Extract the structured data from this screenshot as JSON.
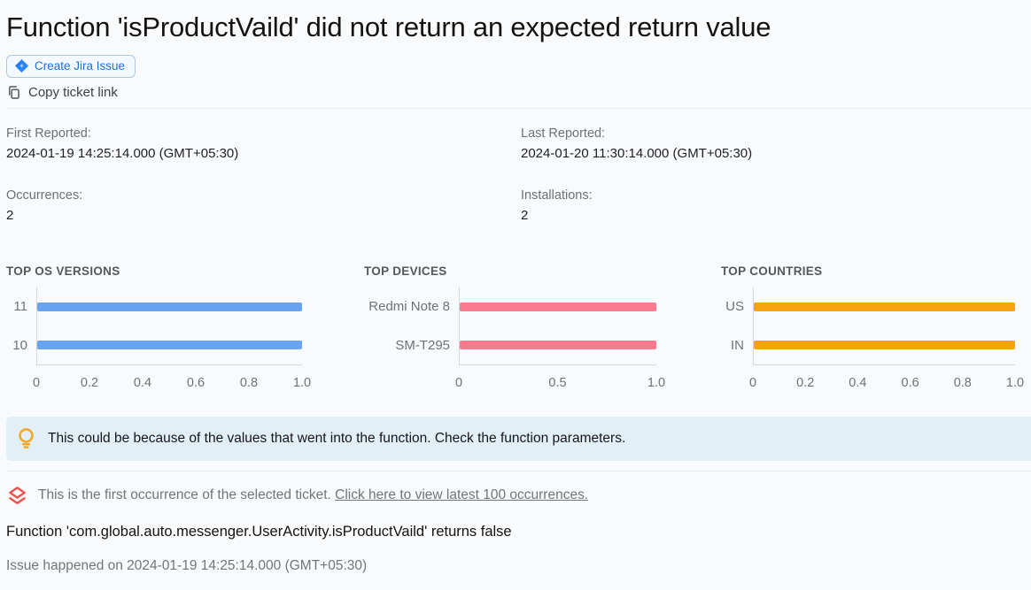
{
  "header": {
    "title": "Function 'isProductVaild' did not return an expected return value",
    "create_jira_label": "Create Jira Issue",
    "copy_ticket_label": "Copy ticket link"
  },
  "meta": {
    "first_reported_label": "First Reported:",
    "first_reported_value": "2024-01-19 14:25:14.000 (GMT+05:30)",
    "last_reported_label": "Last Reported:",
    "last_reported_value": "2024-01-20 11:30:14.000 (GMT+05:30)",
    "occurrences_label": "Occurrences:",
    "occurrences_value": "2",
    "installations_label": "Installations:",
    "installations_value": "2"
  },
  "chart_data": [
    {
      "type": "bar",
      "orientation": "horizontal",
      "title": "TOP OS VERSIONS",
      "categories": [
        "11",
        "10"
      ],
      "values": [
        1.0,
        1.0
      ],
      "xlim": [
        0,
        1.0
      ],
      "xticks": [
        0,
        0.2,
        0.4,
        0.6,
        0.8,
        1.0
      ],
      "xtick_labels": [
        "0",
        "0.2",
        "0.4",
        "0.6",
        "0.8",
        "1.0"
      ],
      "bar_color": "#68a4f1",
      "grid": false,
      "legend": false
    },
    {
      "type": "bar",
      "orientation": "horizontal",
      "title": "TOP DEVICES",
      "categories": [
        "Redmi Note 8",
        "SM-T295"
      ],
      "values": [
        1.0,
        1.0
      ],
      "xlim": [
        0,
        1.0
      ],
      "xticks": [
        0,
        0.5,
        1.0
      ],
      "xtick_labels": [
        "0",
        "0.5",
        "1.0"
      ],
      "bar_color": "#fa7a90",
      "grid": false,
      "legend": false
    },
    {
      "type": "bar",
      "orientation": "horizontal",
      "title": "TOP COUNTRIES",
      "categories": [
        "US",
        "IN"
      ],
      "values": [
        1.0,
        1.0
      ],
      "xlim": [
        0,
        1.0
      ],
      "xticks": [
        0,
        0.2,
        0.4,
        0.6,
        0.8,
        1.0
      ],
      "xtick_labels": [
        "0",
        "0.2",
        "0.4",
        "0.6",
        "0.8",
        "1.0"
      ],
      "bar_color": "#f6a30d",
      "grid": false,
      "legend": false
    }
  ],
  "tip": {
    "text": "This could be because of the values that went into the function. Check the function parameters."
  },
  "occurrence": {
    "text": "This is the first occurrence of the selected ticket. ",
    "link": "Click here to view latest 100 occurrences."
  },
  "details": {
    "message": "Function 'com.global.auto.messenger.UserActivity.isProductVaild' returns false",
    "happened": "Issue happened on 2024-01-19 14:25:14.000 (GMT+05:30)"
  },
  "icons": {
    "create_jira": "jira-icon",
    "copy_link": "copy-icon",
    "tip": "lightbulb-icon",
    "occurrence": "layers-diamond-icon"
  },
  "colors": {
    "background": "#f9fafb",
    "jira_button_text": "#2072d0",
    "jira_icon_blue": "#2684ff",
    "banner_background": "#e3eff7",
    "bulb_orange": "#f5a623",
    "occurrence_icon_red": "#ee544d",
    "bar_blue": "#68a4f1",
    "bar_pink": "#fa7a90",
    "bar_orange": "#f6a30d"
  }
}
